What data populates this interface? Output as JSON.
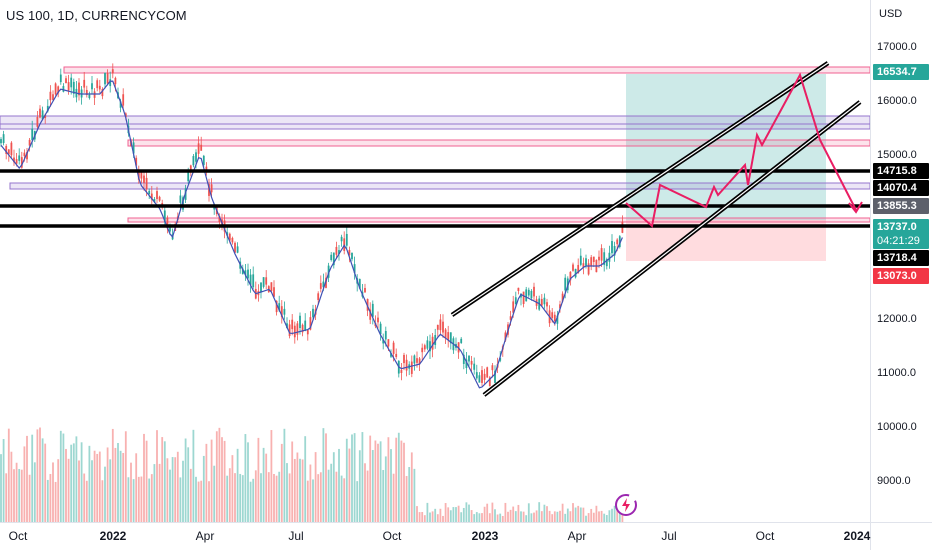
{
  "header": {
    "symbol_title": "US 100, 1D, CURRENCYCOM"
  },
  "price_scale": {
    "currency": "USD",
    "labels": [
      "17000.0",
      "16000.0",
      "15000.0",
      "12000.0",
      "11000.0",
      "10000.0",
      "9000.0"
    ],
    "tags": [
      {
        "text": "16534.7",
        "color": "#26a69a"
      },
      {
        "text": "14715.8",
        "color": "#000000"
      },
      {
        "text": "14070.4",
        "color": "#000000"
      },
      {
        "text": "13855.3",
        "color": "#5d606b"
      },
      {
        "text": "13737.0",
        "subtext": "04:21:29",
        "color": "#26a69a"
      },
      {
        "text": "13718.4",
        "color": "#000000"
      },
      {
        "text": "13073.0",
        "color": "#f23645"
      }
    ]
  },
  "time_axis": {
    "labels": [
      {
        "text": "Oct",
        "bold": false
      },
      {
        "text": "2022",
        "bold": true
      },
      {
        "text": "Apr",
        "bold": false
      },
      {
        "text": "Jul",
        "bold": false
      },
      {
        "text": "Oct",
        "bold": false
      },
      {
        "text": "2023",
        "bold": true
      },
      {
        "text": "Apr",
        "bold": false
      },
      {
        "text": "Jul",
        "bold": false
      },
      {
        "text": "Oct",
        "bold": false
      },
      {
        "text": "2024",
        "bold": true
      }
    ]
  },
  "colors": {
    "up": "#26a69a",
    "down": "#ef5350",
    "ma": "#3f51b5",
    "resistance": "#f06292",
    "support_band": "#9575cd",
    "key_level": "#000000",
    "projection": "#e91e63",
    "target_zone": "#b2dfdb",
    "stop_zone": "#ffcdd2"
  },
  "icons": {
    "flash": "flash-icon"
  }
}
